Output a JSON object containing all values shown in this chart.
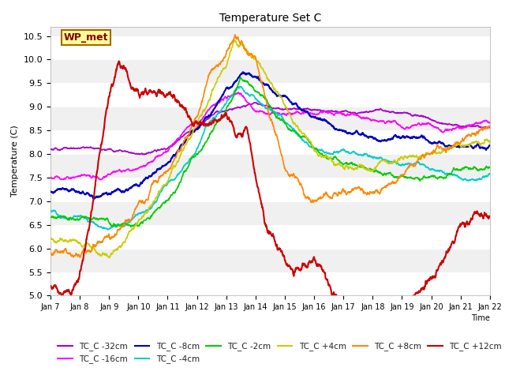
{
  "title": "Temperature Set C",
  "ylabel": "Temperature (C)",
  "ylim": [
    5.0,
    10.7
  ],
  "xlim": [
    0,
    15
  ],
  "plot_bg_color": "#f0f0f0",
  "fig_bg_color": "#ffffff",
  "series_colors": {
    "TC_C -32cm": "#aa00cc",
    "TC_C -16cm": "#ff00ff",
    "TC_C -8cm": "#0000cc",
    "TC_C -4cm": "#00cccc",
    "TC_C -2cm": "#00cc00",
    "TC_C +4cm": "#cccc00",
    "TC_C +8cm": "#ff8800",
    "TC_C +12cm": "#cc0000"
  },
  "xtick_labels": [
    "Jan 7",
    "Jan 8",
    "Jan 9",
    "Jan 10",
    "Jan 11",
    "Jan 12",
    "Jan 13",
    "Jan 14",
    "Jan 15",
    "Jan 16",
    "Jan 17",
    "Jan 18",
    "Jan 19",
    "Jan 20",
    "Jan 21",
    "Jan 22"
  ],
  "ytick_positions": [
    5.0,
    5.5,
    6.0,
    6.5,
    7.0,
    7.5,
    8.0,
    8.5,
    9.0,
    9.5,
    10.0,
    10.5
  ],
  "wp_met_text": "WP_met",
  "wp_met_bg": "#ffff99",
  "wp_met_border": "#aa6600"
}
